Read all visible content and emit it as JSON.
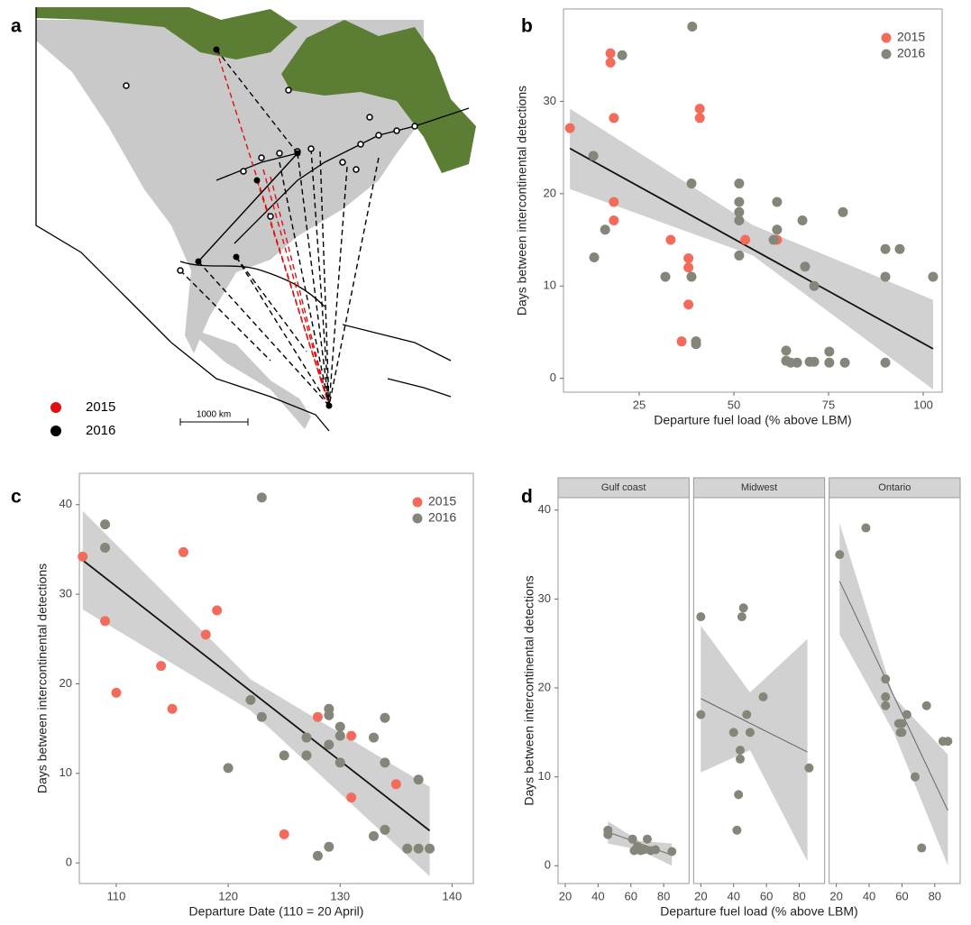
{
  "map": {
    "label": "a",
    "legend": [
      "2015",
      "2016"
    ],
    "scale_label": "1000 km"
  },
  "chart_data": [
    {
      "type": "scatter",
      "label": "b",
      "x_label": "Departure fuel load (% above LBM)",
      "y_label": "Days between intercontinental detections",
      "xlim": [
        5,
        105
      ],
      "ylim": [
        -1.5,
        40
      ],
      "xticks": [
        25,
        50,
        75,
        100
      ],
      "yticks": [
        0,
        10,
        20,
        30
      ],
      "legend": "top-right",
      "series": [
        {
          "name": "2015",
          "color": "#f26b5b",
          "x": [
            6.7,
            17.4,
            17.4,
            18.3,
            18.3,
            18.3,
            41,
            41,
            33.3,
            38,
            38,
            38,
            36.2,
            53,
            61.4
          ],
          "values": [
            27.1,
            35.2,
            34.2,
            28.2,
            19.1,
            17.1,
            29.2,
            28.2,
            15,
            13,
            12,
            8,
            4,
            15,
            15
          ]
        },
        {
          "name": "2016",
          "color": "#85857a",
          "x": [
            20.5,
            39,
            12.9,
            16,
            13.1,
            38.8,
            31.9,
            38.8,
            40,
            40,
            51.4,
            51.4,
            51.4,
            51.4,
            51.4,
            61.4,
            61.4,
            60.5,
            68.1,
            78.8,
            68.8,
            71.2,
            63.8,
            63.8,
            65,
            66.7,
            70,
            71.2,
            75.2,
            75.2,
            79.3,
            90,
            93.8,
            90,
            102.6,
            90
          ],
          "values": [
            35,
            38.1,
            24.1,
            16.1,
            13.1,
            21.1,
            11,
            11,
            4,
            3.7,
            21.1,
            19.1,
            18,
            17.1,
            13.3,
            19.1,
            16.1,
            15,
            17.1,
            18,
            12.1,
            10,
            3,
            1.9,
            1.7,
            1.7,
            1.8,
            1.8,
            2.9,
            1.7,
            1.7,
            14,
            14,
            11,
            11,
            1.7
          ]
        }
      ],
      "fit": {
        "x": [
          6.7,
          102.6
        ],
        "values": [
          24.9,
          3.2
        ]
      },
      "band": {
        "x": [
          6.7,
          55,
          102.6
        ],
        "lower": [
          20.5,
          13.3,
          -1.2
        ],
        "upper": [
          29.2,
          16.6,
          8.5
        ]
      }
    },
    {
      "type": "scatter",
      "label": "c",
      "x_label": "Departure Date (110 = 20 April)",
      "y_label": "Days between intercontinental detections",
      "xlim": [
        106.7,
        141.9
      ],
      "ylim": [
        -2.3,
        43.5
      ],
      "xticks": [
        110,
        120,
        130,
        140
      ],
      "yticks": [
        0,
        10,
        20,
        30,
        40
      ],
      "legend": "top-right",
      "series": [
        {
          "name": "2015",
          "color": "#f26b5b",
          "x": [
            107,
            109,
            110,
            114,
            115,
            116,
            118,
            119,
            125,
            128,
            131,
            131,
            135
          ],
          "values": [
            34.2,
            27,
            19,
            22,
            17.2,
            34.7,
            25.5,
            28.2,
            3.2,
            16.3,
            14.2,
            7.3,
            8.8
          ]
        },
        {
          "name": "2016",
          "color": "#85857a",
          "x": [
            109,
            109,
            120,
            122,
            123,
            123,
            125,
            127,
            127,
            128,
            129,
            129,
            129,
            129,
            130,
            130,
            130,
            133,
            133,
            134,
            134,
            134,
            136,
            137,
            137,
            138
          ],
          "values": [
            37.8,
            35.2,
            10.6,
            18.2,
            40.8,
            16.3,
            12,
            14,
            12,
            0.8,
            17.2,
            16.5,
            13.2,
            1.8,
            15.2,
            14.2,
            11.2,
            14,
            3,
            16.2,
            11.2,
            3.7,
            1.6,
            9.3,
            1.6,
            1.6
          ]
        }
      ],
      "fit": {
        "x": [
          107,
          138
        ],
        "values": [
          33.8,
          3.6
        ]
      },
      "band": {
        "x": [
          107,
          122,
          138
        ],
        "lower": [
          28.3,
          17,
          -1.5
        ],
        "upper": [
          39.3,
          20.5,
          8.5
        ]
      }
    },
    {
      "type": "facets",
      "label": "d",
      "x_label": "Departure fuel load (% above LBM)",
      "y_label": "Days between intercontinental detections",
      "xlim": [
        15.6,
        95.5
      ],
      "ylim": [
        -2,
        41.4
      ],
      "xticks": [
        20,
        40,
        60,
        80
      ],
      "yticks": [
        0,
        10,
        20,
        30,
        40
      ],
      "color": "#85857a",
      "facets": [
        {
          "title": "Gulf coast",
          "x": [
            46,
            46,
            61,
            62,
            63,
            64,
            66,
            68,
            70,
            72,
            75,
            85
          ],
          "values": [
            4,
            3.5,
            3,
            1.7,
            1.8,
            2.2,
            1.7,
            1.8,
            3,
            1.7,
            1.8,
            1.6
          ],
          "fit": {
            "x": [
              46,
              85
            ],
            "values": [
              3.8,
              1.2
            ]
          },
          "band": {
            "x": [
              46,
              65,
              85
            ],
            "lower": [
              2.5,
              1.8,
              0
            ],
            "upper": [
              5,
              2.8,
              2.5
            ]
          }
        },
        {
          "title": "Midwest",
          "x": [
            20,
            20,
            40,
            42,
            43,
            44,
            44,
            45,
            46,
            48,
            50,
            58,
            86
          ],
          "values": [
            28,
            17,
            15,
            4,
            8,
            13,
            12,
            28,
            29,
            17,
            15,
            19,
            11
          ],
          "fit": {
            "x": [
              20,
              85
            ],
            "values": [
              18.8,
              12.8
            ]
          },
          "band": {
            "x": [
              20,
              50,
              85
            ],
            "lower": [
              10.5,
              13,
              0.5
            ],
            "upper": [
              27,
              19.5,
              25.5
            ]
          }
        },
        {
          "title": "Ontario",
          "x": [
            22,
            38,
            50,
            50,
            50,
            58,
            59,
            60,
            60,
            63,
            68,
            72,
            75,
            85,
            88
          ],
          "values": [
            35,
            38,
            21,
            19,
            18,
            16,
            15,
            15,
            16,
            17,
            10,
            2,
            18,
            14,
            14
          ],
          "fit": {
            "x": [
              22,
              88
            ],
            "values": [
              32,
              6.2
            ]
          },
          "band": {
            "x": [
              22,
              55,
              88
            ],
            "lower": [
              26,
              15,
              0
            ],
            "upper": [
              38.5,
              19,
              12.5
            ]
          }
        }
      ]
    }
  ]
}
